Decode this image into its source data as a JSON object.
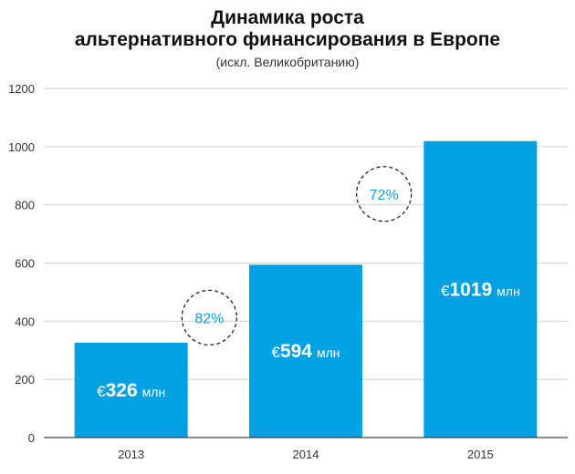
{
  "chart_data": {
    "type": "bar",
    "title_lines": [
      "Динамика роста",
      "альтернативного финансирования в Европе"
    ],
    "subtitle": "(искл. Великобританию)",
    "categories": [
      "2013",
      "2014",
      "2015"
    ],
    "values": [
      326,
      594,
      1019
    ],
    "value_labels": [
      {
        "currency": "€",
        "number": "326",
        "unit": "млн"
      },
      {
        "currency": "€",
        "number": "594",
        "unit": "млн"
      },
      {
        "currency": "€",
        "number": "1019",
        "unit": "млн"
      }
    ],
    "growth_labels": [
      "82%",
      "72%"
    ],
    "ylim": [
      0,
      1200
    ],
    "yticks": [
      0,
      200,
      400,
      600,
      800,
      1000,
      1200
    ],
    "grid": true,
    "colors": {
      "bar": "#00a0e3",
      "growth_text": "#1a9ad6",
      "grid": "#d0d0d0",
      "axis": "#444444"
    }
  }
}
